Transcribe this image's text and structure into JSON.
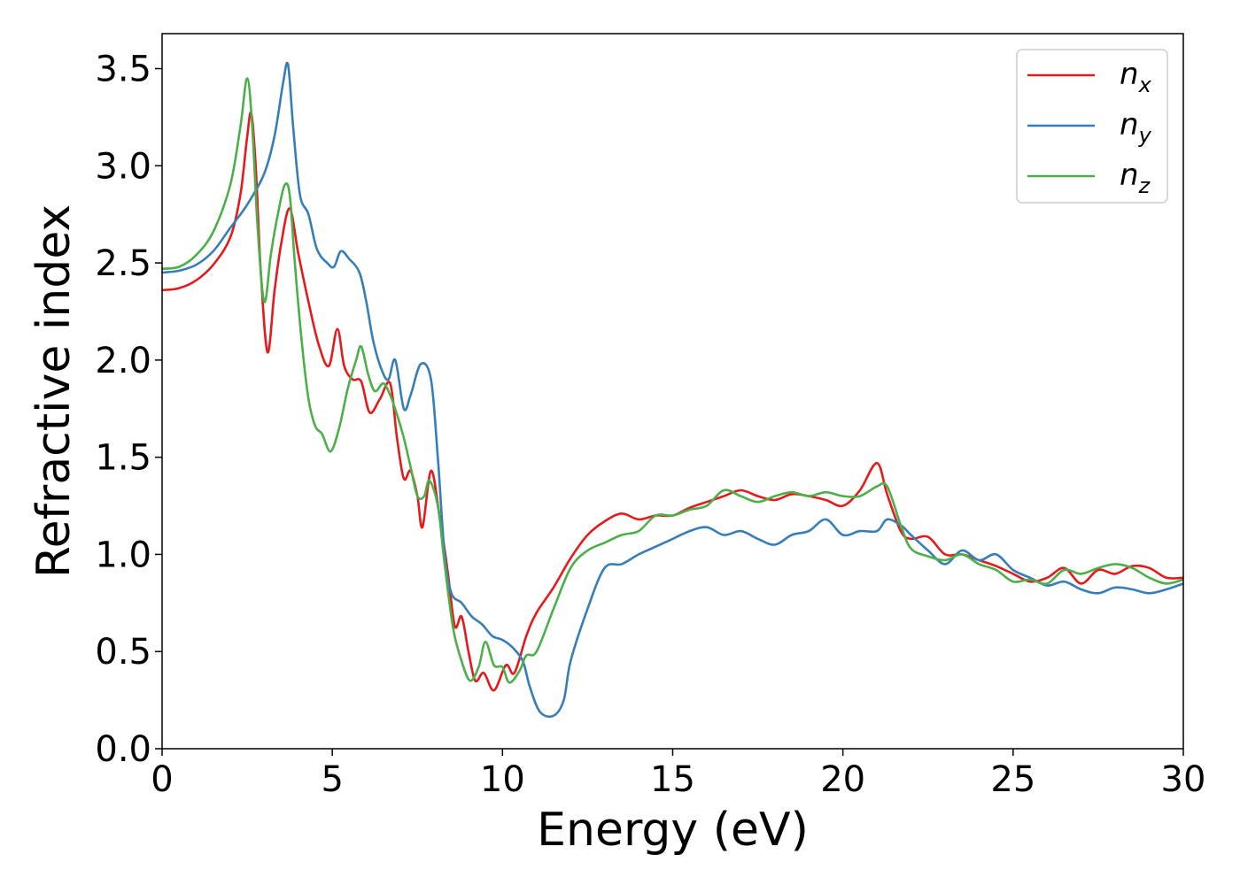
{
  "chart_data": {
    "type": "line",
    "title": "",
    "xlabel": "Energy (eV)",
    "ylabel": "Refractive index",
    "xlim": [
      0,
      30
    ],
    "ylim": [
      0,
      3.68
    ],
    "xticks": [
      0,
      5,
      10,
      15,
      20,
      25,
      30
    ],
    "yticks": [
      0.0,
      0.5,
      1.0,
      1.5,
      2.0,
      2.5,
      3.0,
      3.5
    ],
    "xtick_labels": [
      "0",
      "5",
      "10",
      "15",
      "20",
      "25",
      "30"
    ],
    "ytick_labels": [
      "0.0",
      "0.5",
      "1.0",
      "1.5",
      "2.0",
      "2.5",
      "3.0",
      "3.5"
    ],
    "grid": false,
    "legend_position": "top-right",
    "series": [
      {
        "name": "n_x",
        "label_base": "n",
        "label_sub": "x",
        "color": "#e41a1c",
        "points": [
          [
            0,
            2.36
          ],
          [
            0.5,
            2.37
          ],
          [
            1,
            2.41
          ],
          [
            1.5,
            2.49
          ],
          [
            2,
            2.63
          ],
          [
            2.3,
            2.85
          ],
          [
            2.5,
            3.15
          ],
          [
            2.62,
            3.27
          ],
          [
            2.75,
            3.0
          ],
          [
            2.9,
            2.45
          ],
          [
            3.1,
            2.04
          ],
          [
            3.3,
            2.35
          ],
          [
            3.5,
            2.6
          ],
          [
            3.75,
            2.78
          ],
          [
            4.0,
            2.55
          ],
          [
            4.3,
            2.3
          ],
          [
            4.6,
            2.08
          ],
          [
            4.9,
            1.97
          ],
          [
            5.15,
            2.16
          ],
          [
            5.35,
            1.97
          ],
          [
            5.6,
            1.9
          ],
          [
            5.85,
            1.89
          ],
          [
            6.1,
            1.73
          ],
          [
            6.4,
            1.8
          ],
          [
            6.7,
            1.88
          ],
          [
            6.9,
            1.6
          ],
          [
            7.1,
            1.39
          ],
          [
            7.3,
            1.43
          ],
          [
            7.5,
            1.3
          ],
          [
            7.65,
            1.14
          ],
          [
            7.9,
            1.43
          ],
          [
            8.15,
            1.2
          ],
          [
            8.4,
            0.9
          ],
          [
            8.6,
            0.63
          ],
          [
            8.8,
            0.68
          ],
          [
            9.0,
            0.5
          ],
          [
            9.2,
            0.35
          ],
          [
            9.45,
            0.39
          ],
          [
            9.75,
            0.3
          ],
          [
            10.1,
            0.43
          ],
          [
            10.35,
            0.39
          ],
          [
            10.7,
            0.58
          ],
          [
            11.0,
            0.7
          ],
          [
            11.5,
            0.83
          ],
          [
            12.0,
            0.98
          ],
          [
            12.5,
            1.1
          ],
          [
            13.0,
            1.17
          ],
          [
            13.5,
            1.21
          ],
          [
            14.0,
            1.18
          ],
          [
            14.5,
            1.2
          ],
          [
            15.0,
            1.2
          ],
          [
            15.5,
            1.24
          ],
          [
            16.0,
            1.27
          ],
          [
            16.5,
            1.3
          ],
          [
            17.0,
            1.33
          ],
          [
            17.5,
            1.3
          ],
          [
            18.0,
            1.28
          ],
          [
            18.5,
            1.31
          ],
          [
            19.0,
            1.3
          ],
          [
            19.5,
            1.28
          ],
          [
            20.0,
            1.25
          ],
          [
            20.5,
            1.33
          ],
          [
            21.0,
            1.47
          ],
          [
            21.3,
            1.31
          ],
          [
            21.7,
            1.12
          ],
          [
            22.0,
            1.08
          ],
          [
            22.5,
            1.09
          ],
          [
            23.0,
            1.0
          ],
          [
            23.5,
            1.0
          ],
          [
            24.0,
            0.97
          ],
          [
            24.5,
            0.94
          ],
          [
            25.0,
            0.9
          ],
          [
            25.5,
            0.86
          ],
          [
            26.0,
            0.88
          ],
          [
            26.5,
            0.93
          ],
          [
            27.0,
            0.85
          ],
          [
            27.5,
            0.92
          ],
          [
            28.0,
            0.9
          ],
          [
            28.5,
            0.94
          ],
          [
            29.0,
            0.93
          ],
          [
            29.5,
            0.88
          ],
          [
            30,
            0.88
          ]
        ]
      },
      {
        "name": "n_y",
        "label_base": "n",
        "label_sub": "y",
        "color": "#377eb8",
        "points": [
          [
            0,
            2.45
          ],
          [
            0.5,
            2.46
          ],
          [
            1,
            2.49
          ],
          [
            1.5,
            2.56
          ],
          [
            2,
            2.68
          ],
          [
            2.5,
            2.8
          ],
          [
            3.0,
            2.96
          ],
          [
            3.3,
            3.15
          ],
          [
            3.55,
            3.42
          ],
          [
            3.7,
            3.52
          ],
          [
            3.85,
            3.2
          ],
          [
            4.05,
            2.85
          ],
          [
            4.3,
            2.75
          ],
          [
            4.55,
            2.57
          ],
          [
            4.85,
            2.5
          ],
          [
            5.05,
            2.48
          ],
          [
            5.25,
            2.56
          ],
          [
            5.5,
            2.52
          ],
          [
            5.8,
            2.45
          ],
          [
            6.0,
            2.3
          ],
          [
            6.2,
            2.1
          ],
          [
            6.45,
            1.95
          ],
          [
            6.65,
            1.9
          ],
          [
            6.85,
            2.0
          ],
          [
            7.1,
            1.75
          ],
          [
            7.3,
            1.82
          ],
          [
            7.6,
            1.98
          ],
          [
            7.9,
            1.9
          ],
          [
            8.1,
            1.5
          ],
          [
            8.3,
            1.0
          ],
          [
            8.5,
            0.8
          ],
          [
            8.8,
            0.75
          ],
          [
            9.1,
            0.68
          ],
          [
            9.4,
            0.64
          ],
          [
            9.7,
            0.58
          ],
          [
            10.0,
            0.56
          ],
          [
            10.3,
            0.52
          ],
          [
            10.6,
            0.45
          ],
          [
            10.8,
            0.32
          ],
          [
            11.1,
            0.19
          ],
          [
            11.5,
            0.17
          ],
          [
            11.8,
            0.25
          ],
          [
            12.0,
            0.45
          ],
          [
            12.5,
            0.72
          ],
          [
            13.0,
            0.93
          ],
          [
            13.5,
            0.95
          ],
          [
            14.0,
            1.0
          ],
          [
            14.5,
            1.04
          ],
          [
            15.0,
            1.08
          ],
          [
            15.5,
            1.12
          ],
          [
            16.0,
            1.14
          ],
          [
            16.5,
            1.1
          ],
          [
            17.0,
            1.12
          ],
          [
            17.5,
            1.08
          ],
          [
            18.0,
            1.05
          ],
          [
            18.5,
            1.1
          ],
          [
            19.0,
            1.12
          ],
          [
            19.5,
            1.18
          ],
          [
            20.0,
            1.1
          ],
          [
            20.5,
            1.12
          ],
          [
            21.0,
            1.12
          ],
          [
            21.3,
            1.18
          ],
          [
            21.7,
            1.15
          ],
          [
            22.0,
            1.1
          ],
          [
            22.5,
            1.02
          ],
          [
            23.0,
            0.95
          ],
          [
            23.5,
            1.02
          ],
          [
            24.0,
            0.97
          ],
          [
            24.5,
            1.0
          ],
          [
            25.0,
            0.92
          ],
          [
            25.5,
            0.88
          ],
          [
            26.0,
            0.84
          ],
          [
            26.5,
            0.86
          ],
          [
            27.0,
            0.82
          ],
          [
            27.5,
            0.8
          ],
          [
            28.0,
            0.83
          ],
          [
            28.5,
            0.82
          ],
          [
            29.0,
            0.8
          ],
          [
            29.5,
            0.82
          ],
          [
            30,
            0.85
          ]
        ]
      },
      {
        "name": "n_z",
        "label_base": "n",
        "label_sub": "z",
        "color": "#4daf4a",
        "points": [
          [
            0,
            2.47
          ],
          [
            0.5,
            2.48
          ],
          [
            1,
            2.54
          ],
          [
            1.5,
            2.66
          ],
          [
            2,
            2.9
          ],
          [
            2.3,
            3.2
          ],
          [
            2.5,
            3.45
          ],
          [
            2.65,
            3.2
          ],
          [
            2.8,
            2.7
          ],
          [
            3.0,
            2.3
          ],
          [
            3.2,
            2.55
          ],
          [
            3.4,
            2.75
          ],
          [
            3.6,
            2.9
          ],
          [
            3.75,
            2.85
          ],
          [
            3.9,
            2.5
          ],
          [
            4.1,
            2.1
          ],
          [
            4.3,
            1.8
          ],
          [
            4.5,
            1.66
          ],
          [
            4.7,
            1.62
          ],
          [
            4.95,
            1.53
          ],
          [
            5.2,
            1.65
          ],
          [
            5.45,
            1.85
          ],
          [
            5.7,
            2.0
          ],
          [
            5.85,
            2.07
          ],
          [
            6.05,
            1.93
          ],
          [
            6.25,
            1.84
          ],
          [
            6.5,
            1.88
          ],
          [
            6.7,
            1.82
          ],
          [
            6.9,
            1.72
          ],
          [
            7.1,
            1.6
          ],
          [
            7.3,
            1.45
          ],
          [
            7.5,
            1.3
          ],
          [
            7.7,
            1.3
          ],
          [
            7.85,
            1.38
          ],
          [
            8.1,
            1.25
          ],
          [
            8.3,
            0.95
          ],
          [
            8.55,
            0.62
          ],
          [
            8.8,
            0.45
          ],
          [
            9.05,
            0.35
          ],
          [
            9.3,
            0.42
          ],
          [
            9.5,
            0.55
          ],
          [
            9.75,
            0.43
          ],
          [
            10.0,
            0.42
          ],
          [
            10.2,
            0.34
          ],
          [
            10.5,
            0.4
          ],
          [
            10.7,
            0.48
          ],
          [
            11.0,
            0.5
          ],
          [
            11.5,
            0.72
          ],
          [
            12.0,
            0.93
          ],
          [
            12.5,
            1.02
          ],
          [
            13.0,
            1.06
          ],
          [
            13.5,
            1.1
          ],
          [
            14.0,
            1.12
          ],
          [
            14.5,
            1.2
          ],
          [
            15.0,
            1.2
          ],
          [
            15.5,
            1.23
          ],
          [
            16.0,
            1.25
          ],
          [
            16.5,
            1.33
          ],
          [
            17.0,
            1.3
          ],
          [
            17.5,
            1.27
          ],
          [
            18.0,
            1.3
          ],
          [
            18.5,
            1.32
          ],
          [
            19.0,
            1.3
          ],
          [
            19.5,
            1.32
          ],
          [
            20.0,
            1.3
          ],
          [
            20.5,
            1.3
          ],
          [
            21.0,
            1.35
          ],
          [
            21.3,
            1.35
          ],
          [
            21.7,
            1.15
          ],
          [
            22.0,
            1.03
          ],
          [
            22.5,
            0.99
          ],
          [
            23.0,
            0.97
          ],
          [
            23.5,
            1.0
          ],
          [
            24.0,
            0.95
          ],
          [
            24.5,
            0.92
          ],
          [
            25.0,
            0.86
          ],
          [
            25.5,
            0.87
          ],
          [
            26.0,
            0.85
          ],
          [
            26.5,
            0.92
          ],
          [
            27.0,
            0.9
          ],
          [
            27.5,
            0.93
          ],
          [
            28.0,
            0.95
          ],
          [
            28.5,
            0.93
          ],
          [
            29.0,
            0.88
          ],
          [
            29.5,
            0.85
          ],
          [
            30,
            0.87
          ]
        ]
      }
    ]
  }
}
